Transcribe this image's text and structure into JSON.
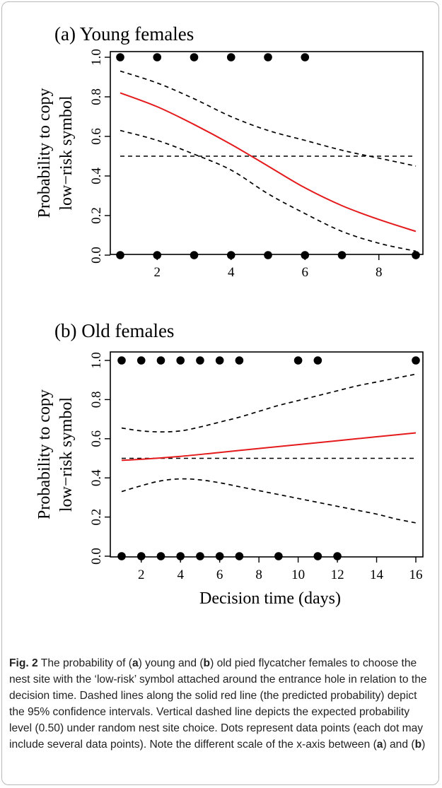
{
  "figure_label": "Fig. 2",
  "caption_parts": [
    "The probability of (",
    "a",
    ") young and (",
    "b",
    ") old pied flycatcher females to choose the nest site with the ‘low-risk’ symbol attached around the entrance hole in relation to the decision time. Dashed lines along the solid red line (the predicted probability) depict the 95% confidence intervals. Vertical dashed line depicts the expected probability level (0.50) under random nest site choice. Dots represent data points (each dot may include several data points). Note the different scale of the x-axis between (",
    "a",
    ") and (",
    "b",
    ")"
  ],
  "colors": {
    "fit_line": "#e41a1c",
    "ci_line": "#000000",
    "points": "#000000",
    "frame": "#b9b9b9"
  },
  "chart_data": [
    {
      "type": "line",
      "title": "(a) Young females",
      "xlabel": "",
      "ylabel": [
        "Probability to copy",
        "low−risk symbol"
      ],
      "xlim": [
        1,
        9
      ],
      "ylim": [
        0,
        1
      ],
      "x_ticks": [
        2,
        4,
        6,
        8
      ],
      "y_ticks": [
        "0.0",
        "0.2",
        "0.4",
        "0.6",
        "0.8",
        "1.0"
      ],
      "grid": false,
      "reference_line": 0.5,
      "fit": {
        "x": [
          1,
          2,
          3,
          4,
          5,
          6,
          7,
          8,
          9
        ],
        "y": [
          0.82,
          0.75,
          0.66,
          0.56,
          0.45,
          0.34,
          0.25,
          0.18,
          0.12
        ]
      },
      "ci_upper": {
        "x": [
          1,
          2,
          3,
          4,
          5,
          6,
          7,
          8,
          9
        ],
        "y": [
          0.93,
          0.87,
          0.79,
          0.7,
          0.63,
          0.58,
          0.53,
          0.49,
          0.45
        ]
      },
      "ci_lower": {
        "x": [
          1,
          2,
          3,
          4,
          5,
          6,
          7,
          8,
          9
        ],
        "y": [
          0.63,
          0.58,
          0.51,
          0.43,
          0.31,
          0.21,
          0.12,
          0.06,
          0.02
        ]
      },
      "points": [
        {
          "x": 1,
          "y": 1
        },
        {
          "x": 2,
          "y": 1
        },
        {
          "x": 3,
          "y": 1
        },
        {
          "x": 4,
          "y": 1
        },
        {
          "x": 5,
          "y": 1
        },
        {
          "x": 6,
          "y": 1
        },
        {
          "x": 1,
          "y": 0
        },
        {
          "x": 2,
          "y": 0
        },
        {
          "x": 3,
          "y": 0
        },
        {
          "x": 4,
          "y": 0
        },
        {
          "x": 5,
          "y": 0
        },
        {
          "x": 6,
          "y": 0
        },
        {
          "x": 7,
          "y": 0
        },
        {
          "x": 9,
          "y": 0
        }
      ]
    },
    {
      "type": "line",
      "title": "(b) Old females",
      "xlabel": "Decision time (days)",
      "ylabel": [
        "Probability to copy",
        "low−risk symbol"
      ],
      "xlim": [
        1,
        16
      ],
      "ylim": [
        0,
        1
      ],
      "x_ticks": [
        2,
        4,
        6,
        8,
        10,
        12,
        14,
        16
      ],
      "y_ticks": [
        "0.0",
        "0.2",
        "0.4",
        "0.6",
        "0.8",
        "1.0"
      ],
      "grid": false,
      "reference_line": 0.5,
      "fit": {
        "x": [
          1,
          2,
          4,
          6,
          8,
          10,
          12,
          14,
          16
        ],
        "y": [
          0.49,
          0.495,
          0.51,
          0.53,
          0.55,
          0.57,
          0.59,
          0.61,
          0.63
        ]
      },
      "ci_upper": {
        "x": [
          1,
          2,
          3,
          4,
          5,
          6,
          7,
          8,
          9,
          10,
          11,
          12,
          13,
          14,
          15,
          16
        ],
        "y": [
          0.655,
          0.64,
          0.635,
          0.64,
          0.66,
          0.685,
          0.71,
          0.74,
          0.77,
          0.795,
          0.82,
          0.845,
          0.87,
          0.89,
          0.91,
          0.93
        ]
      },
      "ci_lower": {
        "x": [
          1,
          2,
          3,
          4,
          5,
          6,
          7,
          8,
          9,
          10,
          11,
          12,
          13,
          14,
          15,
          16
        ],
        "y": [
          0.33,
          0.36,
          0.385,
          0.395,
          0.39,
          0.375,
          0.355,
          0.335,
          0.315,
          0.295,
          0.275,
          0.255,
          0.235,
          0.215,
          0.19,
          0.17
        ]
      },
      "points": [
        {
          "x": 1,
          "y": 1
        },
        {
          "x": 2,
          "y": 1
        },
        {
          "x": 3,
          "y": 1
        },
        {
          "x": 4,
          "y": 1
        },
        {
          "x": 5,
          "y": 1
        },
        {
          "x": 6,
          "y": 1
        },
        {
          "x": 7,
          "y": 1
        },
        {
          "x": 10,
          "y": 1
        },
        {
          "x": 11,
          "y": 1
        },
        {
          "x": 16,
          "y": 1
        },
        {
          "x": 1,
          "y": 0
        },
        {
          "x": 2,
          "y": 0
        },
        {
          "x": 3,
          "y": 0
        },
        {
          "x": 4,
          "y": 0
        },
        {
          "x": 5,
          "y": 0
        },
        {
          "x": 6,
          "y": 0
        },
        {
          "x": 7,
          "y": 0
        },
        {
          "x": 9,
          "y": 0
        },
        {
          "x": 11,
          "y": 0
        },
        {
          "x": 12,
          "y": 0
        }
      ]
    }
  ]
}
